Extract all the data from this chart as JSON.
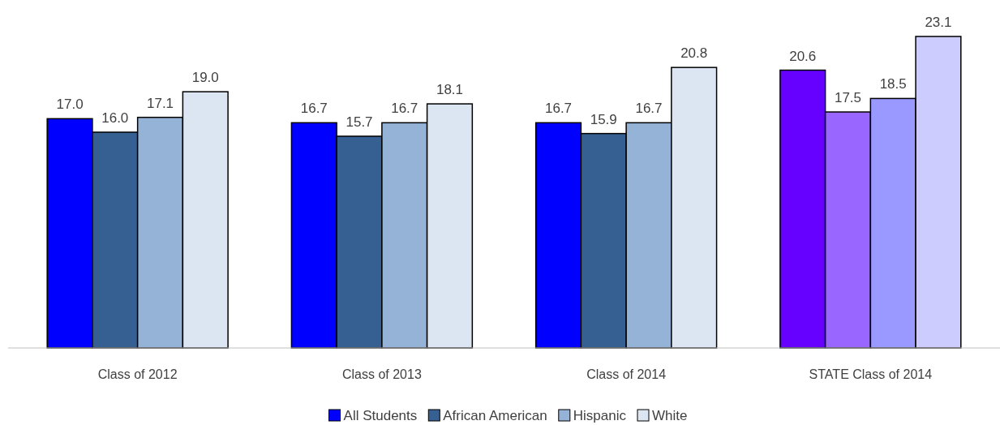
{
  "chart_data": {
    "type": "bar",
    "categories": [
      "Class of 2012",
      "Class of 2013",
      "Class of 2014",
      "STATE Class of 2014"
    ],
    "series": [
      {
        "name": "All Students",
        "color": "#0000ff",
        "colors": [
          "#0000ff",
          "#0000ff",
          "#0000ff",
          "#6600ff"
        ],
        "values": [
          17.0,
          16.7,
          16.7,
          20.6
        ],
        "value_labels": [
          "17.0",
          "16.7",
          "16.7",
          "20.6"
        ]
      },
      {
        "name": "African American",
        "color": "#376092",
        "colors": [
          "#376092",
          "#376092",
          "#376092",
          "#9966ff"
        ],
        "values": [
          16.0,
          15.7,
          15.9,
          17.5
        ],
        "value_labels": [
          "16.0",
          "15.7",
          "15.9",
          "17.5"
        ]
      },
      {
        "name": "Hispanic",
        "color": "#95b3d7",
        "colors": [
          "#95b3d7",
          "#95b3d7",
          "#95b3d7",
          "#9999ff"
        ],
        "values": [
          17.1,
          16.7,
          16.7,
          18.5
        ],
        "value_labels": [
          "17.1",
          "16.7",
          "16.7",
          "18.5"
        ]
      },
      {
        "name": "White",
        "color": "#dce6f2",
        "colors": [
          "#dce6f2",
          "#dce6f2",
          "#dce6f2",
          "#ccccff"
        ],
        "values": [
          19.0,
          18.1,
          20.8,
          23.1
        ],
        "value_labels": [
          "19.0",
          "18.1",
          "20.8",
          "23.1"
        ]
      }
    ],
    "legend": "bottom"
  }
}
